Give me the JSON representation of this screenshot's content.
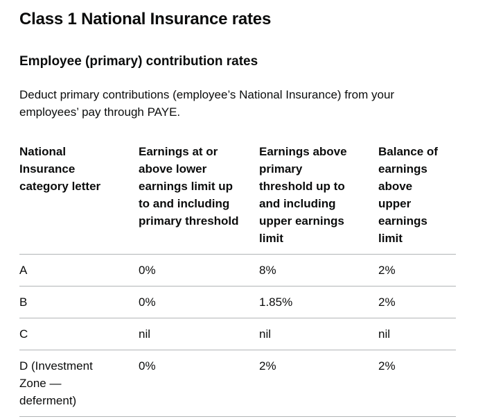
{
  "colors": {
    "text": "#0b0c0c",
    "table_border": "#b1b4b6",
    "background": "#ffffff"
  },
  "page": {
    "title": "Class 1 National Insurance rates",
    "section_heading": "Employee (primary) contribution rates",
    "intro_lines": [
      "Deduct primary contributions (employee’s National Insurance) from your",
      "employees’ pay through PAYE."
    ]
  },
  "table": {
    "headers": [
      [
        "National",
        "Insurance",
        "category letter"
      ],
      [
        "Earnings at or",
        "above lower",
        "earnings limit up",
        "to and including",
        "primary threshold"
      ],
      [
        "Earnings above",
        "primary",
        "threshold up to",
        "and including",
        "upper earnings",
        "limit"
      ],
      [
        "Balance of",
        "earnings",
        "above upper",
        "earnings",
        "limit"
      ]
    ],
    "rows": [
      {
        "category": [
          "A"
        ],
        "values": [
          "0%",
          "8%",
          "2%"
        ]
      },
      {
        "category": [
          "B"
        ],
        "values": [
          "0%",
          "1.85%",
          "2%"
        ]
      },
      {
        "category": [
          "C"
        ],
        "values": [
          "nil",
          "nil",
          "nil"
        ]
      },
      {
        "category": [
          "D (Investment",
          "Zone —",
          "deferment)"
        ],
        "values": [
          "0%",
          "2%",
          "2%"
        ]
      }
    ]
  }
}
